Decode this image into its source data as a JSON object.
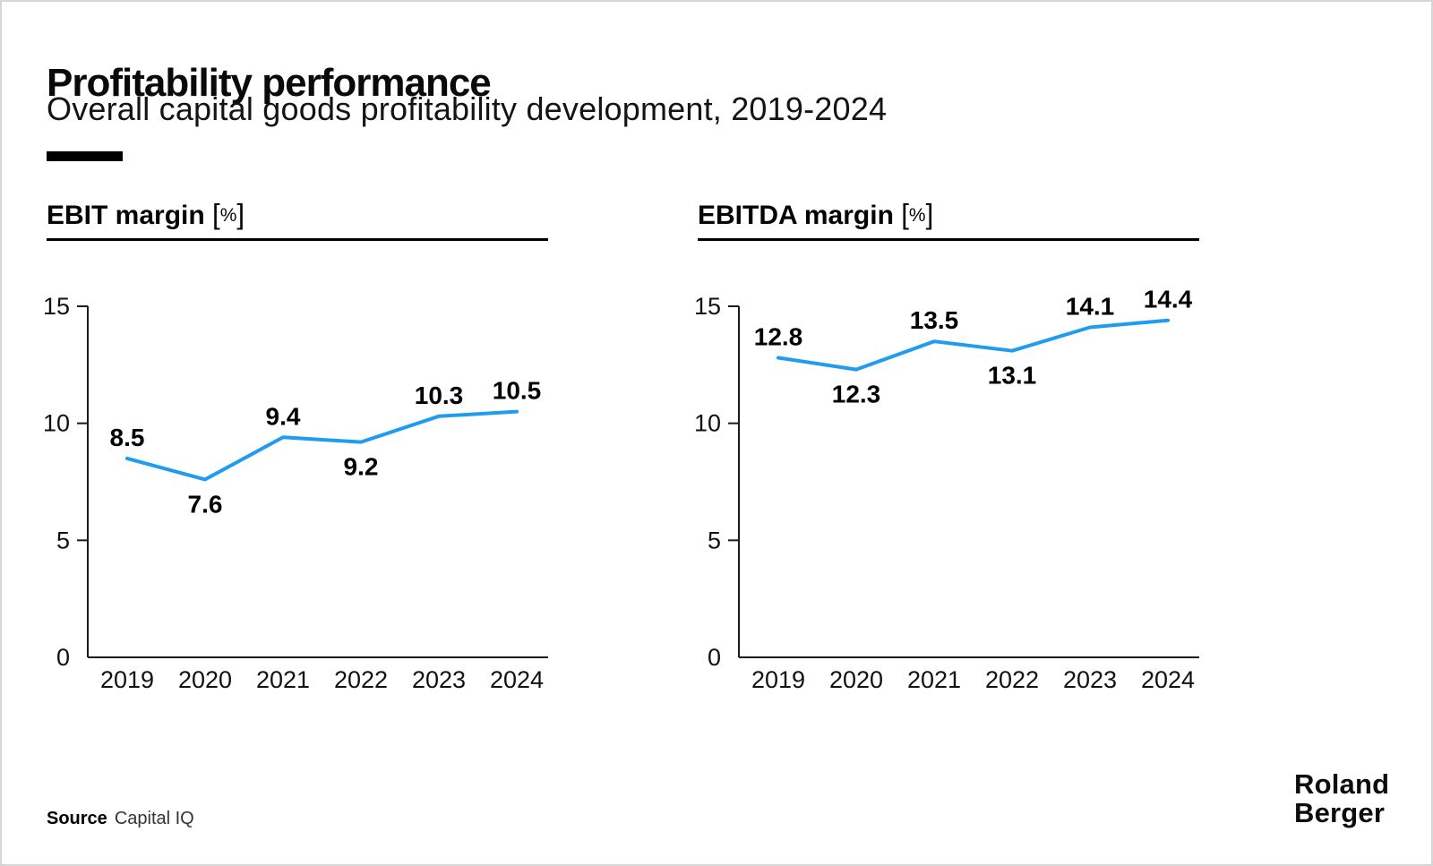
{
  "slide": {
    "title": "Profitability performance",
    "subtitle": "Overall capital goods profitability development, 2019-2024",
    "source_label": "Source",
    "source_value": "Capital IQ",
    "logo_line1": "Roland",
    "logo_line2": "Berger"
  },
  "colors": {
    "line_blue": "#1F9CF0",
    "axis": "#1a1a1a",
    "text": "#000000",
    "accent_bar": "#000000"
  },
  "chart_data": [
    {
      "type": "line",
      "title": "EBIT margin",
      "unit_open": "[",
      "unit_symbol": "%",
      "unit_close": "]",
      "categories": [
        "2019",
        "2020",
        "2021",
        "2022",
        "2023",
        "2024"
      ],
      "values": [
        8.5,
        7.6,
        9.4,
        9.2,
        10.3,
        10.5
      ],
      "value_labels": [
        "8.5",
        "7.6",
        "9.4",
        "9.2",
        "10.3",
        "10.5"
      ],
      "ylim": [
        0,
        15
      ],
      "yticks": [
        0,
        5,
        10,
        15
      ],
      "grid": false,
      "legend": false,
      "line_color": "#1F9CF0"
    },
    {
      "type": "line",
      "title": "EBITDA margin",
      "unit_open": "[",
      "unit_symbol": "%",
      "unit_close": "]",
      "categories": [
        "2019",
        "2020",
        "2021",
        "2022",
        "2023",
        "2024"
      ],
      "values": [
        12.8,
        12.3,
        13.5,
        13.1,
        14.1,
        14.4
      ],
      "value_labels": [
        "12.8",
        "12.3",
        "13.5",
        "13.1",
        "14.1",
        "14.4"
      ],
      "ylim": [
        0,
        15
      ],
      "yticks": [
        0,
        5,
        10,
        15
      ],
      "grid": false,
      "legend": false,
      "line_color": "#1F9CF0"
    }
  ]
}
